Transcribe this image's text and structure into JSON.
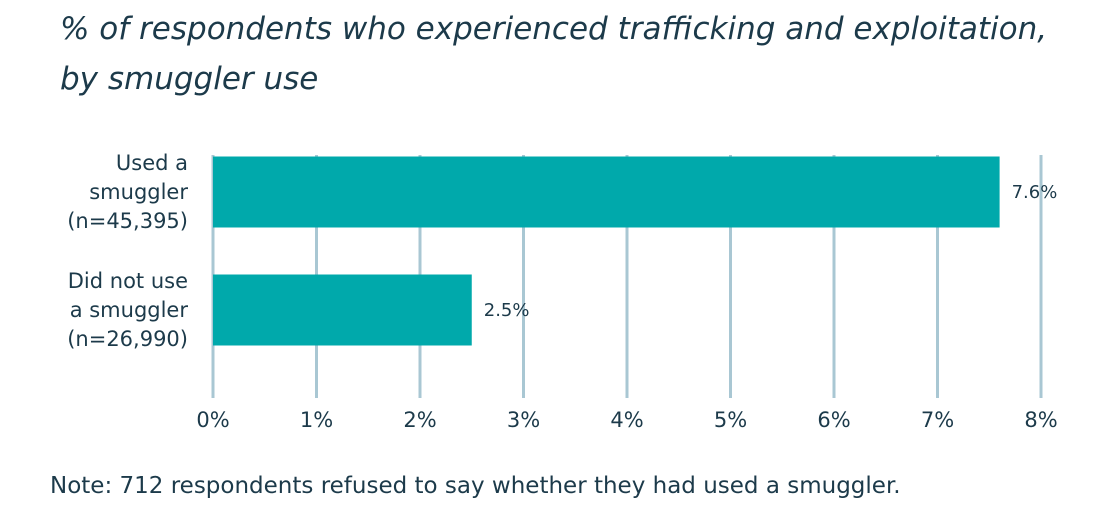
{
  "title": "% of respondents who experienced trafficking and exploitation, by smuggler use",
  "note": "Note: 712 respondents refused to say whether they had used a smuggler.",
  "colors": {
    "bar": "#00a9ab",
    "grid": "#a9c7d3",
    "text": "#1c3a4a"
  },
  "chart_data": {
    "type": "bar",
    "orientation": "horizontal",
    "title": "% of respondents who experienced trafficking and exploitation, by smuggler use",
    "categories": [
      [
        "Used a",
        "smuggler",
        "(n=45,395)"
      ],
      [
        "Did not use",
        "a smuggler",
        "(n=26,990)"
      ]
    ],
    "values": [
      7.6,
      2.5
    ],
    "data_labels": [
      "7.6%",
      "2.5%"
    ],
    "xlim": [
      0,
      8
    ],
    "x_ticks": [
      0,
      1,
      2,
      3,
      4,
      5,
      6,
      7,
      8
    ],
    "x_tick_labels": [
      "0%",
      "1%",
      "2%",
      "3%",
      "4%",
      "5%",
      "6%",
      "7%",
      "8%"
    ],
    "grid": "vertical"
  }
}
